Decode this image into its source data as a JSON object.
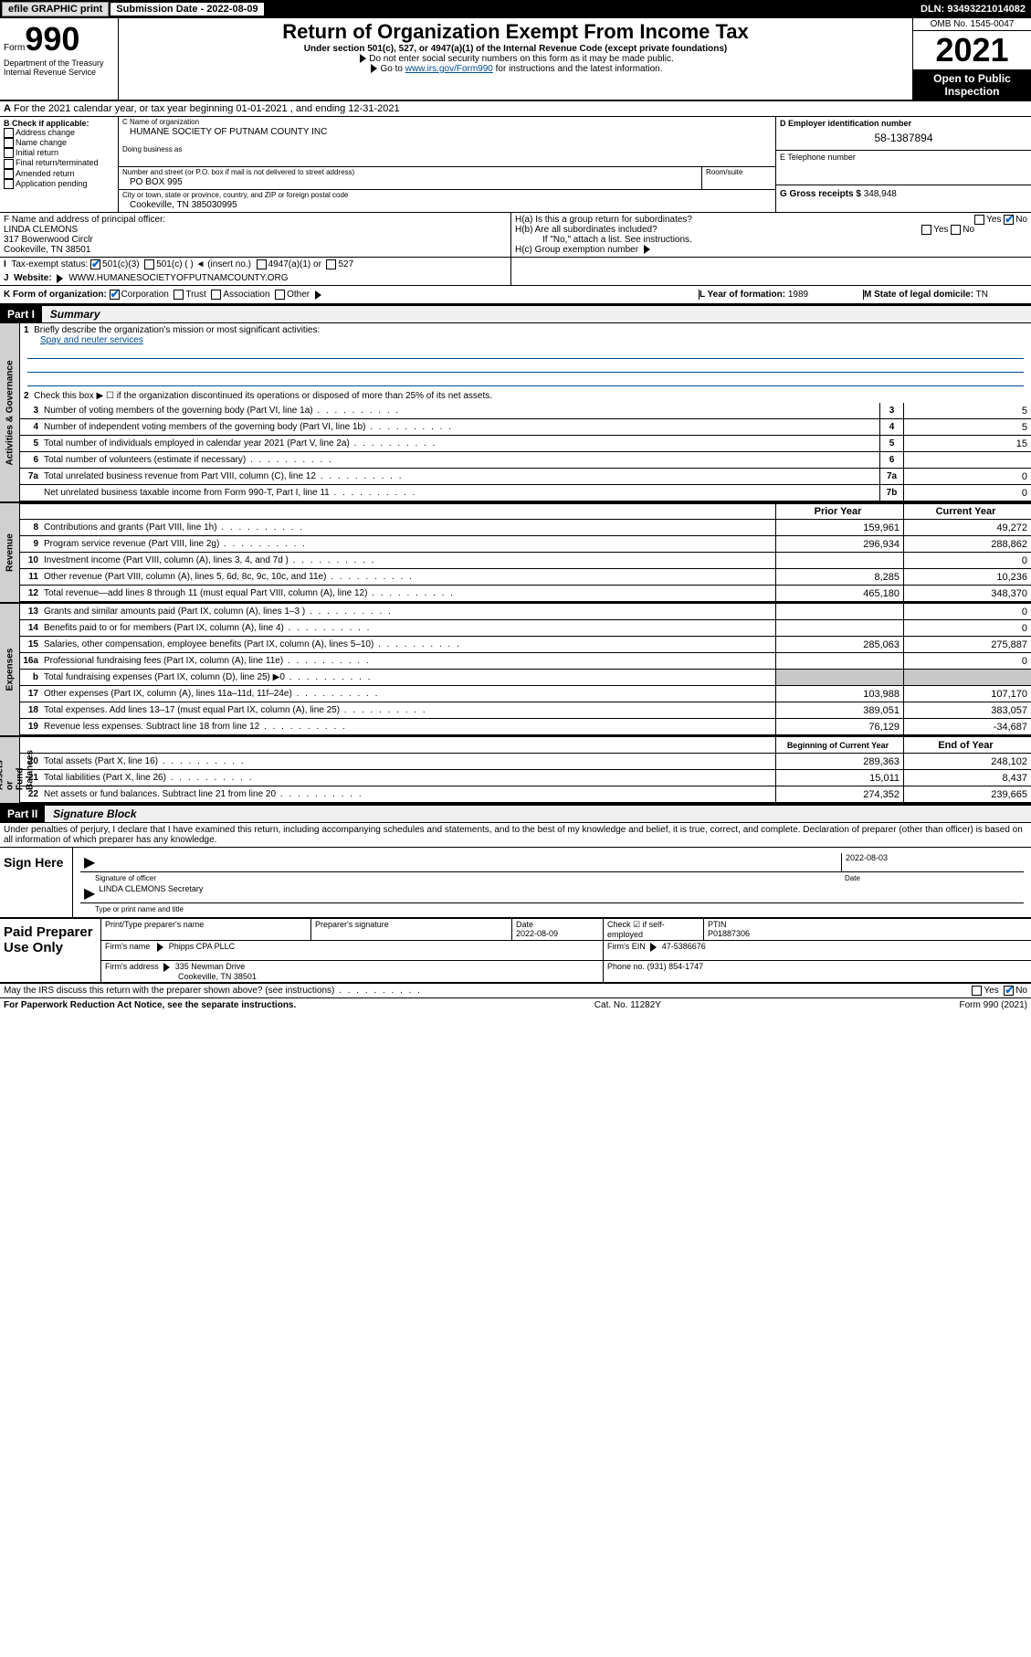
{
  "topbar": {
    "efile": "efile GRAPHIC print",
    "sub_label": "Submission Date - 2022-08-09",
    "dln": "DLN: 93493221014082"
  },
  "header": {
    "form_word": "Form",
    "form_num": "990",
    "title": "Return of Organization Exempt From Income Tax",
    "sub": "Under section 501(c), 527, or 4947(a)(1) of the Internal Revenue Code (except private foundations)",
    "note1": "Do not enter social security numbers on this form as it may be made public.",
    "note2_pre": "Go to ",
    "note2_link": "www.irs.gov/Form990",
    "note2_post": " for instructions and the latest information.",
    "omb": "OMB No. 1545-0047",
    "year": "2021",
    "open": "Open to Public Inspection",
    "dept": "Department of the Treasury\nInternal Revenue Service"
  },
  "A": {
    "line": "For the 2021 calendar year, or tax year beginning 01-01-2021   , and ending 12-31-2021"
  },
  "B": {
    "hdr": "B Check if applicable:",
    "opts": [
      "Address change",
      "Name change",
      "Initial return",
      "Final return/terminated",
      "Amended return",
      "Application pending"
    ]
  },
  "C": {
    "name_lbl": "C Name of organization",
    "name": "HUMANE SOCIETY OF PUTNAM COUNTY INC",
    "dba_lbl": "Doing business as",
    "street_lbl": "Number and street (or P.O. box if mail is not delivered to street address)",
    "room_lbl": "Room/suite",
    "street": "PO BOX 995",
    "city_lbl": "City or town, state or province, country, and ZIP or foreign postal code",
    "city": "Cookeville, TN  385030995"
  },
  "D": {
    "lbl": "D Employer identification number",
    "val": "58-1387894"
  },
  "E": {
    "lbl": "E Telephone number",
    "val": ""
  },
  "G": {
    "lbl": "G Gross receipts $",
    "val": "348,948"
  },
  "F": {
    "lbl": "F  Name and address of principal officer:",
    "name": "LINDA CLEMONS",
    "addr1": "317 Bowerwood Circlr",
    "addr2": "Cookeville, TN  38501"
  },
  "H": {
    "a": "H(a)  Is this a group return for subordinates?",
    "b": "H(b)  Are all subordinates included?",
    "b_note": "If \"No,\" attach a list. See instructions.",
    "c": "H(c)  Group exemption number",
    "yes": "Yes",
    "no": "No"
  },
  "I": {
    "lbl": "Tax-exempt status:",
    "o1": "501(c)(3)",
    "o2": "501(c) (   ) ◄ (insert no.)",
    "o3": "4947(a)(1) or",
    "o4": "527"
  },
  "J": {
    "lbl": "Website:",
    "val": "WWW.HUMANESOCIETYOFPUTNAMCOUNTY.ORG"
  },
  "K": {
    "lbl": "K Form of organization:",
    "o1": "Corporation",
    "o2": "Trust",
    "o3": "Association",
    "o4": "Other"
  },
  "L": {
    "lbl": "L Year of formation:",
    "val": "1989"
  },
  "M": {
    "lbl": "M State of legal domicile:",
    "val": "TN"
  },
  "partI": {
    "hdr": "Part I",
    "title": "Summary"
  },
  "sect_gov": {
    "label": "Activities & Governance",
    "l1_num": "1",
    "l1": "Briefly describe the organization's mission or most significant activities:",
    "l1_val": "Spay and neuter services",
    "l2_num": "2",
    "l2": "Check this box ▶ ☐  if the organization discontinued its operations or disposed of more than 25% of its net assets.",
    "rows": [
      {
        "n": "3",
        "t": "Number of voting members of the governing body (Part VI, line 1a)",
        "box": "3",
        "v": "5"
      },
      {
        "n": "4",
        "t": "Number of independent voting members of the governing body (Part VI, line 1b)",
        "box": "4",
        "v": "5"
      },
      {
        "n": "5",
        "t": "Total number of individuals employed in calendar year 2021 (Part V, line 2a)",
        "box": "5",
        "v": "15"
      },
      {
        "n": "6",
        "t": "Total number of volunteers (estimate if necessary)",
        "box": "6",
        "v": ""
      },
      {
        "n": "7a",
        "t": "Total unrelated business revenue from Part VIII, column (C), line 12",
        "box": "7a",
        "v": "0"
      },
      {
        "n": "",
        "t": "Net unrelated business taxable income from Form 990-T, Part I, line 11",
        "box": "7b",
        "v": "0"
      }
    ]
  },
  "sect_rev": {
    "label": "Revenue",
    "hdr_prior": "Prior Year",
    "hdr_curr": "Current Year",
    "rows": [
      {
        "n": "8",
        "t": "Contributions and grants (Part VIII, line 1h)",
        "p": "159,961",
        "c": "49,272"
      },
      {
        "n": "9",
        "t": "Program service revenue (Part VIII, line 2g)",
        "p": "296,934",
        "c": "288,862"
      },
      {
        "n": "10",
        "t": "Investment income (Part VIII, column (A), lines 3, 4, and 7d )",
        "p": "",
        "c": "0"
      },
      {
        "n": "11",
        "t": "Other revenue (Part VIII, column (A), lines 5, 6d, 8c, 9c, 10c, and 11e)",
        "p": "8,285",
        "c": "10,236"
      },
      {
        "n": "12",
        "t": "Total revenue—add lines 8 through 11 (must equal Part VIII, column (A), line 12)",
        "p": "465,180",
        "c": "348,370"
      }
    ]
  },
  "sect_exp": {
    "label": "Expenses",
    "rows": [
      {
        "n": "13",
        "t": "Grants and similar amounts paid (Part IX, column (A), lines 1–3 )",
        "p": "",
        "c": "0"
      },
      {
        "n": "14",
        "t": "Benefits paid to or for members (Part IX, column (A), line 4)",
        "p": "",
        "c": "0"
      },
      {
        "n": "15",
        "t": "Salaries, other compensation, employee benefits (Part IX, column (A), lines 5–10)",
        "p": "285,063",
        "c": "275,887"
      },
      {
        "n": "16a",
        "t": "Professional fundraising fees (Part IX, column (A), line 11e)",
        "p": "",
        "c": "0"
      },
      {
        "n": "b",
        "t": "Total fundraising expenses (Part IX, column (D), line 25) ▶0",
        "p": "shade",
        "c": "shade"
      },
      {
        "n": "17",
        "t": "Other expenses (Part IX, column (A), lines 11a–11d, 11f–24e)",
        "p": "103,988",
        "c": "107,170"
      },
      {
        "n": "18",
        "t": "Total expenses. Add lines 13–17 (must equal Part IX, column (A), line 25)",
        "p": "389,051",
        "c": "383,057"
      },
      {
        "n": "19",
        "t": "Revenue less expenses. Subtract line 18 from line 12",
        "p": "76,129",
        "c": "-34,687"
      }
    ]
  },
  "sect_net": {
    "label": "Net Assets or\nFund Balances",
    "hdr_prior": "Beginning of Current Year",
    "hdr_curr": "End of Year",
    "rows": [
      {
        "n": "20",
        "t": "Total assets (Part X, line 16)",
        "p": "289,363",
        "c": "248,102"
      },
      {
        "n": "21",
        "t": "Total liabilities (Part X, line 26)",
        "p": "15,011",
        "c": "8,437"
      },
      {
        "n": "22",
        "t": "Net assets or fund balances. Subtract line 21 from line 20",
        "p": "274,352",
        "c": "239,665"
      }
    ]
  },
  "partII": {
    "hdr": "Part II",
    "title": "Signature Block",
    "decl": "Under penalties of perjury, I declare that I have examined this return, including accompanying schedules and statements, and to the best of my knowledge and belief, it is true, correct, and complete. Declaration of preparer (other than officer) is based on all information of which preparer has any knowledge."
  },
  "sign": {
    "here": "Sign Here",
    "sig_lbl": "Signature of officer",
    "date_lbl": "Date",
    "date": "2022-08-03",
    "name": "LINDA CLEMONS Secretary",
    "name_lbl": "Type or print name and title"
  },
  "paid": {
    "hdr": "Paid Preparer Use Only",
    "c1": "Print/Type preparer's name",
    "c2": "Preparer's signature",
    "c3": "Date",
    "c3v": "2022-08-09",
    "c4": "Check ☑ if self-employed",
    "c5": "PTIN",
    "c5v": "P01887306",
    "firm_lbl": "Firm's name",
    "firm": "Phipps CPA PLLC",
    "ein_lbl": "Firm's EIN",
    "ein": "47-5386676",
    "addr_lbl": "Firm's address",
    "addr1": "335 Newman Drive",
    "addr2": "Cookeville, TN  38501",
    "phone_lbl": "Phone no.",
    "phone": "(931) 854-1747"
  },
  "discuss": {
    "q": "May the IRS discuss this return with the preparer shown above? (see instructions)",
    "yes": "Yes",
    "no": "No"
  },
  "footer": {
    "l": "For Paperwork Reduction Act Notice, see the separate instructions.",
    "m": "Cat. No. 11282Y",
    "r": "Form 990 (2021)"
  }
}
